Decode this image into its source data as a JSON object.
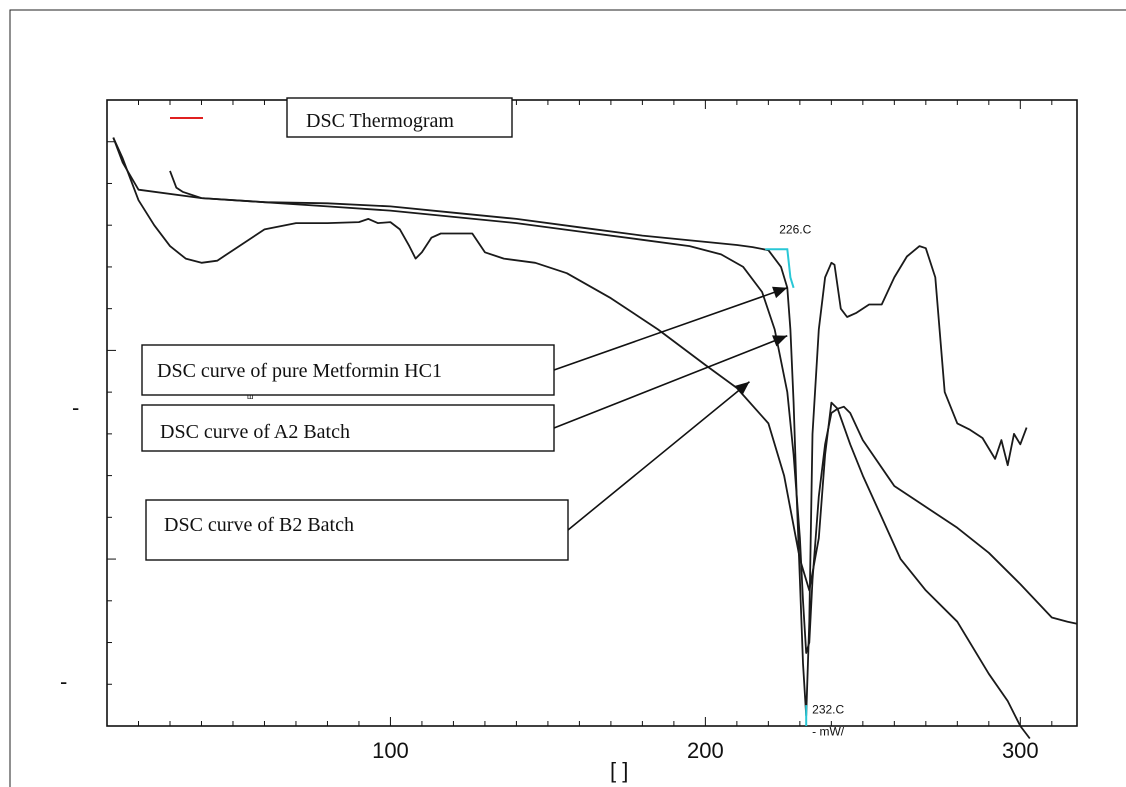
{
  "chart_data": {
    "type": "line",
    "title": "",
    "legend": {
      "label": "DSC Thermogram",
      "color": "#e02020"
    },
    "xlabel": "[ ]",
    "ylabel": "",
    "xlim": [
      10,
      318
    ],
    "ylim": [
      -28,
      2
    ],
    "x_ticks": [
      100,
      200,
      300
    ],
    "y_tick_labels": [
      "-",
      "-"
    ],
    "grid": false,
    "series": [
      {
        "x": [
          30,
          32,
          34,
          40,
          60,
          80,
          100,
          120,
          140,
          160,
          180,
          200,
          210,
          215,
          220,
          224,
          226,
          227,
          228,
          229,
          230,
          231,
          232,
          233,
          234,
          236,
          238,
          240,
          241,
          243,
          245,
          248,
          252,
          256,
          260,
          264,
          268,
          270,
          273,
          276,
          280,
          284,
          288,
          292,
          294,
          296,
          298,
          300,
          302
        ],
        "y": [
          -1.4,
          -2.2,
          -2.4,
          -2.7,
          -2.9,
          -2.95,
          -3.1,
          -3.4,
          -3.7,
          -4.1,
          -4.5,
          -4.8,
          -4.95,
          -5.05,
          -5.2,
          -6.0,
          -7.0,
          -9.0,
          -12.5,
          -17.0,
          -21.0,
          -25.0,
          -27.5,
          -23.0,
          -14.0,
          -9.0,
          -6.5,
          -5.8,
          -5.9,
          -8.0,
          -8.4,
          -8.2,
          -7.8,
          -7.8,
          -6.5,
          -5.5,
          -5.0,
          -5.1,
          -6.5,
          -12.0,
          -13.5,
          -13.8,
          -14.2,
          -15.2,
          -14.3,
          -15.5,
          -14.0,
          -14.5,
          -13.7
        ]
      },
      {
        "x": [
          12,
          15,
          20,
          40,
          60,
          80,
          100,
          120,
          140,
          160,
          180,
          195,
          205,
          212,
          218,
          222,
          226,
          228,
          230,
          231,
          232,
          233,
          234,
          236,
          238,
          240,
          242,
          244,
          246,
          250,
          260,
          270,
          280,
          290,
          300,
          310,
          315,
          318
        ],
        "y": [
          0.2,
          -1.0,
          -2.3,
          -2.7,
          -2.9,
          -3.1,
          -3.3,
          -3.6,
          -3.9,
          -4.3,
          -4.7,
          -5.0,
          -5.4,
          -6.0,
          -7.2,
          -9.0,
          -12.0,
          -15.0,
          -19.0,
          -22.0,
          -24.5,
          -24.0,
          -21.0,
          -17.0,
          -14.5,
          -13.0,
          -12.8,
          -12.7,
          -13.0,
          -14.3,
          -16.5,
          -17.5,
          -18.5,
          -19.7,
          -21.2,
          -22.8,
          -23.0,
          -23.1
        ]
      },
      {
        "x": [
          12,
          15,
          20,
          25,
          30,
          35,
          40,
          45,
          50,
          60,
          70,
          80,
          90,
          93,
          96,
          100,
          103,
          106,
          108,
          110,
          113,
          116,
          120,
          126,
          130,
          136,
          146,
          156,
          170,
          185,
          200,
          210,
          220,
          225,
          230,
          233,
          236,
          238,
          240,
          242,
          246,
          250,
          256,
          262,
          270,
          280,
          290,
          296,
          300,
          303
        ],
        "y": [
          0.2,
          -0.8,
          -2.8,
          -4.0,
          -5.0,
          -5.6,
          -5.8,
          -5.7,
          -5.2,
          -4.2,
          -3.9,
          -3.9,
          -3.85,
          -3.7,
          -3.9,
          -3.85,
          -4.2,
          -5.0,
          -5.6,
          -5.3,
          -4.6,
          -4.4,
          -4.4,
          -4.4,
          -5.3,
          -5.6,
          -5.8,
          -6.3,
          -7.5,
          -9.0,
          -10.7,
          -11.8,
          -13.5,
          -16.0,
          -20.0,
          -21.5,
          -19.0,
          -15.0,
          -12.5,
          -12.8,
          -14.5,
          -16.0,
          -18.0,
          -20.0,
          -21.5,
          -23.0,
          -25.5,
          -26.8,
          -28.0,
          -28.6
        ]
      }
    ],
    "annotations": [
      {
        "text": "226.C",
        "x": 226,
        "y": -4.4
      },
      {
        "text": "232.C",
        "x": 232,
        "y": -27.5
      },
      {
        "text": "-   mW/",
        "x": 232,
        "y": -28.4
      }
    ],
    "onset_marker": {
      "color": "#29c7d6",
      "x": [
        219,
        226,
        227,
        228
      ],
      "y": [
        -5.15,
        -5.15,
        -6.5,
        -7.0
      ]
    },
    "peak_marker": {
      "color": "#29c7d6",
      "x": [
        232,
        232
      ],
      "y": [
        -27.0,
        -28.0
      ]
    },
    "callouts": [
      {
        "text": "DSC curve of pure Metformin HC1",
        "target": [
          226,
          -7.0
        ]
      },
      {
        "text": "DSC curve of A2 Batch",
        "target": [
          226,
          -9.3
        ]
      },
      {
        "text": "DSC curve of B2 Batch",
        "target": [
          214,
          -11.5
        ]
      }
    ],
    "stray_text": "ш"
  }
}
